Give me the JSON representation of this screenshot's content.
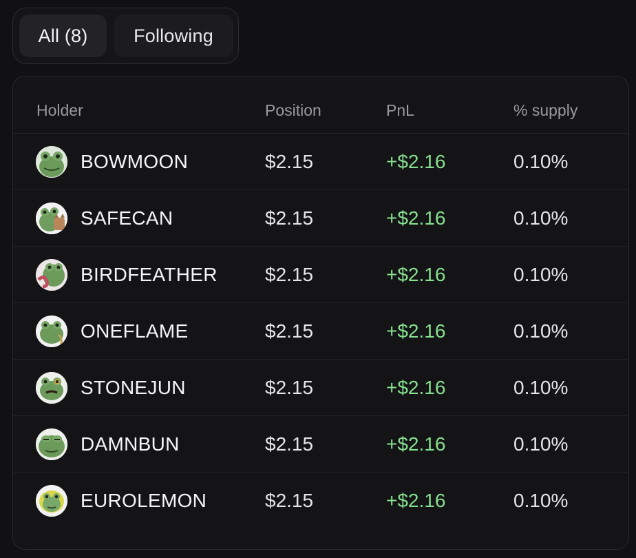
{
  "tabs": {
    "all_label": "All (8)",
    "following_label": "Following"
  },
  "table": {
    "headers": {
      "holder": "Holder",
      "position": "Position",
      "pnl": "PnL",
      "supply": "% supply"
    },
    "rows": [
      {
        "holder": "BOWMOON",
        "position": "$2.15",
        "pnl": "+$2.16",
        "supply": "0.10%",
        "avatar_icon": "frog-avatar-icon"
      },
      {
        "holder": "SAFECAN",
        "position": "$2.15",
        "pnl": "+$2.16",
        "supply": "0.10%",
        "avatar_icon": "frog-cat-avatar-icon"
      },
      {
        "holder": "BIRDFEATHER",
        "position": "$2.15",
        "pnl": "+$2.16",
        "supply": "0.10%",
        "avatar_icon": "frog-tentacle-avatar-icon"
      },
      {
        "holder": "ONEFLAME",
        "position": "$2.15",
        "pnl": "+$2.16",
        "supply": "0.10%",
        "avatar_icon": "frog-chain-avatar-icon"
      },
      {
        "holder": "STONEJUN",
        "position": "$2.15",
        "pnl": "+$2.16",
        "supply": "0.10%",
        "avatar_icon": "frog-monocle-avatar-icon"
      },
      {
        "holder": "DAMNBUN",
        "position": "$2.15",
        "pnl": "+$2.16",
        "supply": "0.10%",
        "avatar_icon": "frog-avatar-icon"
      },
      {
        "holder": "EUROLEMON",
        "position": "$2.15",
        "pnl": "+$2.16",
        "supply": "0.10%",
        "avatar_icon": "frog-lemon-avatar-icon"
      }
    ]
  },
  "colors": {
    "background": "#111113",
    "pnl_positive": "#86e08f",
    "header_text": "#9a9aa0"
  }
}
